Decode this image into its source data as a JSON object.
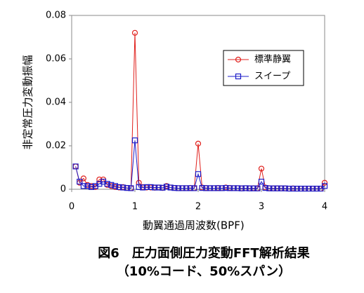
{
  "chart_data": {
    "type": "line",
    "title": "図6　圧力面側圧力変動FFT解析結果",
    "subtitle": "（10%コード、50%スパン）",
    "x_label": "動翼通過周波数(BPF)",
    "y_label": "非定常圧力変動振幅",
    "x": [
      0.0625,
      0.125,
      0.1875,
      0.25,
      0.3125,
      0.375,
      0.4375,
      0.5,
      0.5625,
      0.625,
      0.6875,
      0.75,
      0.8125,
      0.875,
      0.9375,
      1,
      1.0625,
      1.125,
      1.1875,
      1.25,
      1.3125,
      1.375,
      1.4375,
      1.5,
      1.5625,
      1.625,
      1.6875,
      1.75,
      1.8125,
      1.875,
      1.9375,
      2,
      2.0625,
      2.125,
      2.1875,
      2.25,
      2.3125,
      2.375,
      2.4375,
      2.5,
      2.5625,
      2.625,
      2.6875,
      2.75,
      2.8125,
      2.875,
      2.9375,
      3,
      3.0625,
      3.125,
      3.1875,
      3.25,
      3.3125,
      3.375,
      3.4375,
      3.5,
      3.5625,
      3.625,
      3.6875,
      3.75,
      3.8125,
      3.875,
      3.9375,
      4
    ],
    "series": [
      {
        "name": "標準静翼",
        "color": "#e0201c",
        "marker": "circle",
        "values": [
          0.0105,
          0.003,
          0.005,
          0.002,
          0.0015,
          0.001,
          0.0045,
          0.0045,
          0.002,
          0.0015,
          0.001,
          0.0008,
          0.001,
          0.0006,
          0.0005,
          0.072,
          0.003,
          0.001,
          0.0008,
          0.0008,
          0.0007,
          0.0008,
          0.0006,
          0.0015,
          0.0008,
          0.0006,
          0.0005,
          0.0005,
          0.0005,
          0.0006,
          0.0005,
          0.021,
          0.0008,
          0.0006,
          0.0005,
          0.0005,
          0.0006,
          0.0005,
          0.0008,
          0.0006,
          0.0005,
          0.0005,
          0.0004,
          0.0005,
          0.0004,
          0.0005,
          0.0004,
          0.0095,
          0.0008,
          0.0005,
          0.0004,
          0.0004,
          0.0004,
          0.0004,
          0.0003,
          0.0004,
          0.0003,
          0.0003,
          0.0003,
          0.0003,
          0.0003,
          0.0003,
          0.0003,
          0.003
        ]
      },
      {
        "name": "スイープ",
        "color": "#1c1cc8",
        "marker": "square",
        "values": [
          0.0105,
          0.0035,
          0.0015,
          0.0015,
          0.001,
          0.0015,
          0.0025,
          0.0035,
          0.0025,
          0.002,
          0.0015,
          0.001,
          0.0008,
          0.0006,
          0.0005,
          0.0225,
          0.001,
          0.0008,
          0.001,
          0.001,
          0.0008,
          0.0008,
          0.0007,
          0.0012,
          0.0008,
          0.0006,
          0.0005,
          0.0005,
          0.0005,
          0.0005,
          0.0005,
          0.007,
          0.0006,
          0.0005,
          0.0005,
          0.0005,
          0.0005,
          0.0005,
          0.0006,
          0.0005,
          0.0005,
          0.0005,
          0.0004,
          0.0005,
          0.0004,
          0.0004,
          0.0004,
          0.0035,
          0.0006,
          0.0004,
          0.0004,
          0.0004,
          0.0004,
          0.0004,
          0.0003,
          0.0003,
          0.0003,
          0.0003,
          0.0003,
          0.0003,
          0.0003,
          0.0003,
          0.0003,
          0.0015
        ]
      }
    ],
    "xlim": [
      0,
      4
    ],
    "xticks": [
      0,
      1,
      2,
      3,
      4
    ],
    "ylim": [
      0,
      0.08
    ],
    "yticks": [
      0,
      0.02,
      0.04,
      0.06,
      0.08
    ],
    "grid": false,
    "legend_position": "upper right"
  }
}
